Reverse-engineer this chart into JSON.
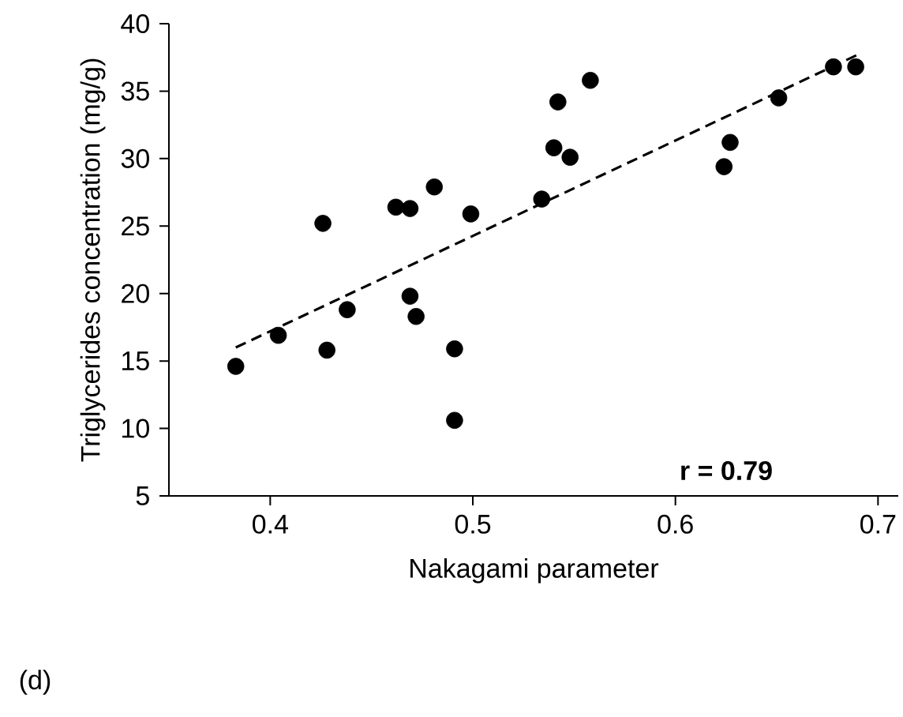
{
  "chart_data": {
    "type": "scatter",
    "xlabel": "Nakagami parameter",
    "ylabel": "Triglycerides concentration (mg/g)",
    "xlim": [
      0.35,
      0.71
    ],
    "ylim": [
      5,
      40
    ],
    "xticks": [
      0.4,
      0.5,
      0.6,
      0.7
    ],
    "yticks": [
      5,
      10,
      15,
      20,
      25,
      30,
      35,
      40
    ],
    "grid": false,
    "series": [
      {
        "color": "#000000",
        "marker": "circle",
        "x": [
          0.383,
          0.404,
          0.426,
          0.428,
          0.438,
          0.462,
          0.469,
          0.469,
          0.472,
          0.481,
          0.491,
          0.491,
          0.499,
          0.534,
          0.54,
          0.542,
          0.548,
          0.558,
          0.624,
          0.627,
          0.651,
          0.678,
          0.689
        ],
        "values": [
          14.6,
          16.9,
          25.2,
          15.8,
          18.8,
          26.4,
          26.3,
          19.8,
          18.3,
          27.9,
          15.9,
          10.6,
          25.9,
          27.0,
          30.8,
          34.2,
          30.1,
          35.8,
          29.4,
          31.2,
          34.5,
          36.8,
          36.8
        ]
      },
      {
        "type": "line",
        "color": "#000000",
        "line_style": "dashed",
        "marker": "none",
        "x": [
          0.383,
          0.69
        ],
        "values": [
          16.0,
          37.7
        ]
      }
    ],
    "annotations": [
      "r = 0.79",
      "(d)"
    ]
  }
}
